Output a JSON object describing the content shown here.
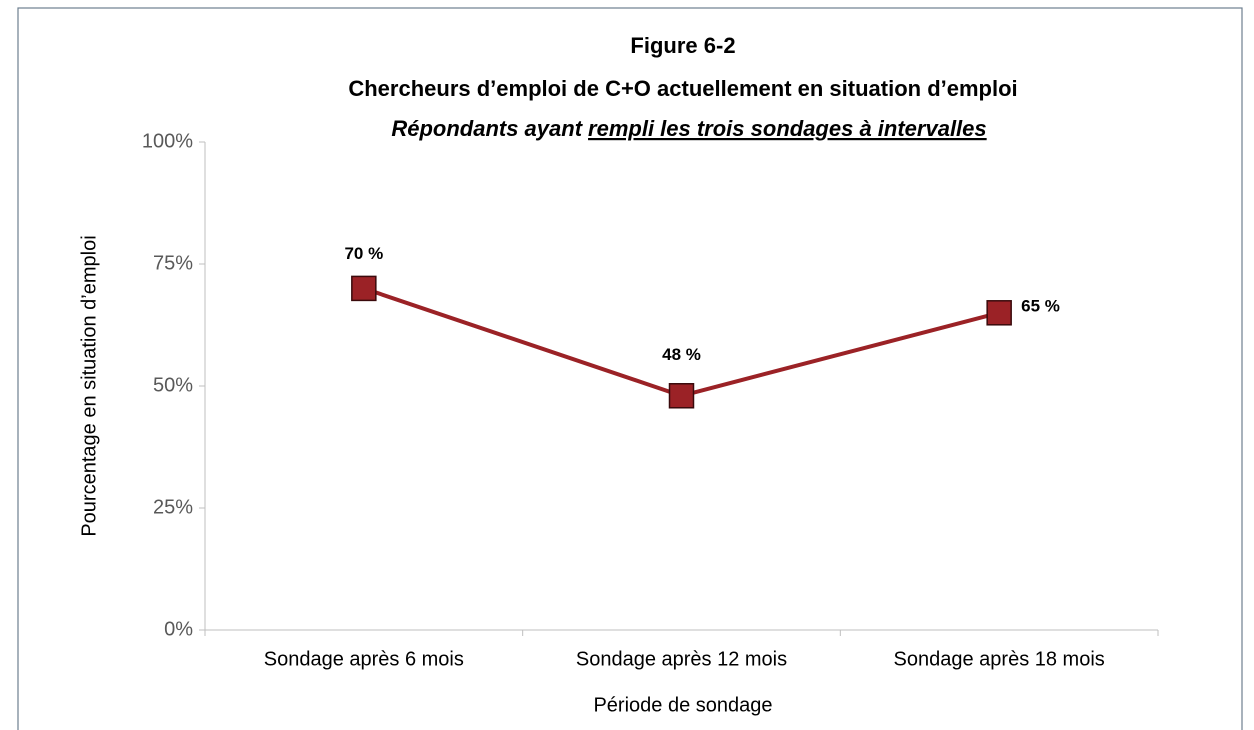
{
  "chart_data": {
    "type": "line",
    "title": "Figure 6-2",
    "subtitle": "Chercheurs d’emploi de C+O actuellement en situation d’emploi",
    "note_plain": "Répondants ayant",
    "note_underlined": "rempli les trois sondages à intervalles",
    "xlabel": "Période de sondage",
    "ylabel": "Pourcentage en situation d’emploi",
    "categories": [
      "Sondage après 6 mois",
      "Sondage après 12 mois",
      "Sondage après 18 mois"
    ],
    "series": [
      {
        "name": "Pourcentage en situation d’emploi",
        "color": "#9b2226",
        "values": [
          70,
          48,
          65
        ],
        "value_labels": [
          "70 %",
          "48 %",
          "65 %"
        ]
      }
    ],
    "ylim": [
      0,
      100
    ],
    "yticks": [
      {
        "value": 0,
        "label": "0%"
      },
      {
        "value": 25,
        "label": "25%"
      },
      {
        "value": 50,
        "label": "50%"
      },
      {
        "value": 75,
        "label": "75%"
      },
      {
        "value": 100,
        "label": "100%"
      }
    ],
    "grid": false
  }
}
